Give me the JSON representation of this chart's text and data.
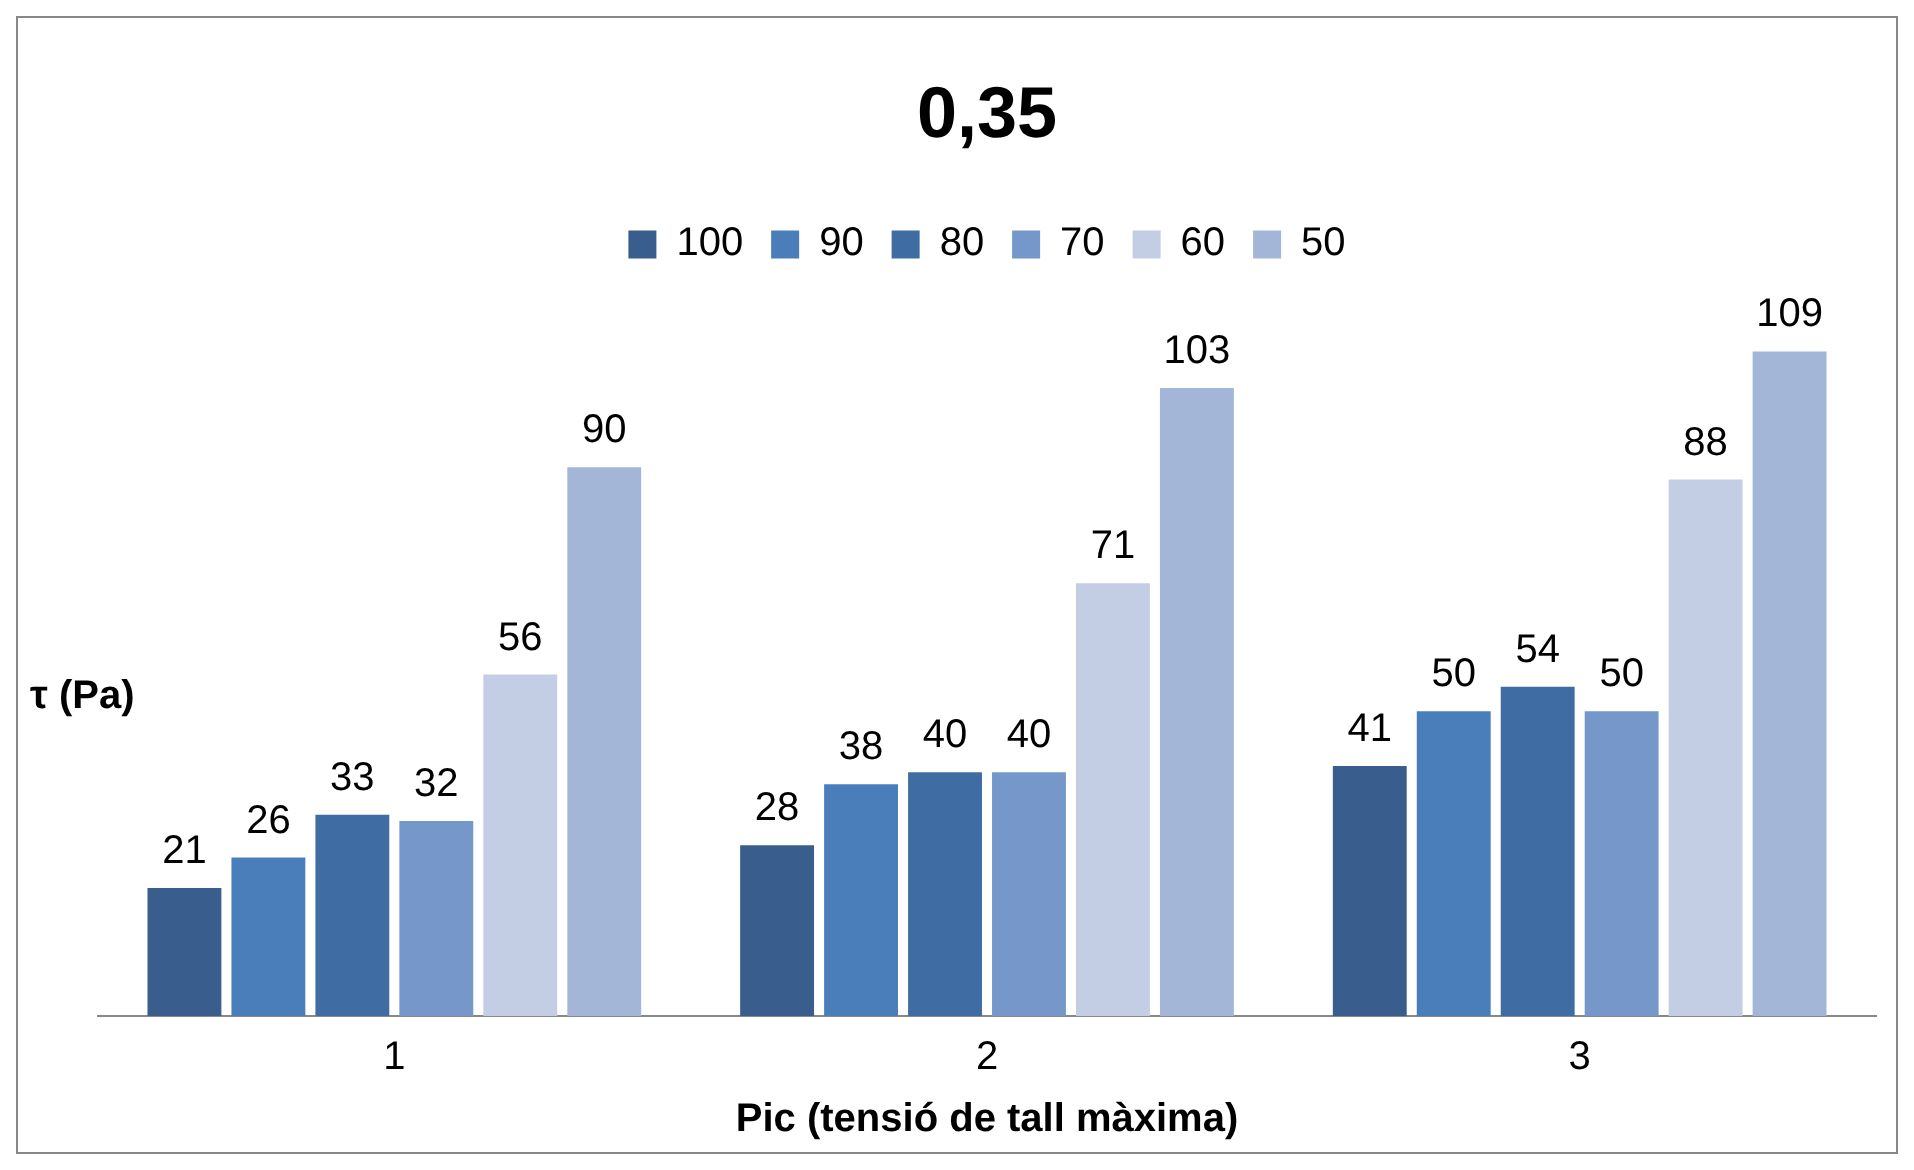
{
  "chart_data": {
    "type": "bar",
    "title": "0,35",
    "xlabel": "Pic (tensió de tall màxima)",
    "ylabel": "τ (Pa)",
    "categories": [
      "1",
      "2",
      "3"
    ],
    "series": [
      {
        "name": "100",
        "color": "#395d8c",
        "values": [
          21,
          28,
          41
        ]
      },
      {
        "name": "90",
        "color": "#4a7ebb",
        "values": [
          26,
          38,
          50
        ]
      },
      {
        "name": "80",
        "color": "#3f6ca3",
        "values": [
          33,
          40,
          54
        ]
      },
      {
        "name": "70",
        "color": "#7597c9",
        "values": [
          32,
          40,
          50
        ]
      },
      {
        "name": "60",
        "color": "#c3cde3",
        "values": [
          56,
          71,
          88
        ]
      },
      {
        "name": "50",
        "color": "#a3b6d7",
        "values": [
          90,
          103,
          109
        ]
      }
    ],
    "data_labels": true,
    "grid": false,
    "legend": "top"
  }
}
